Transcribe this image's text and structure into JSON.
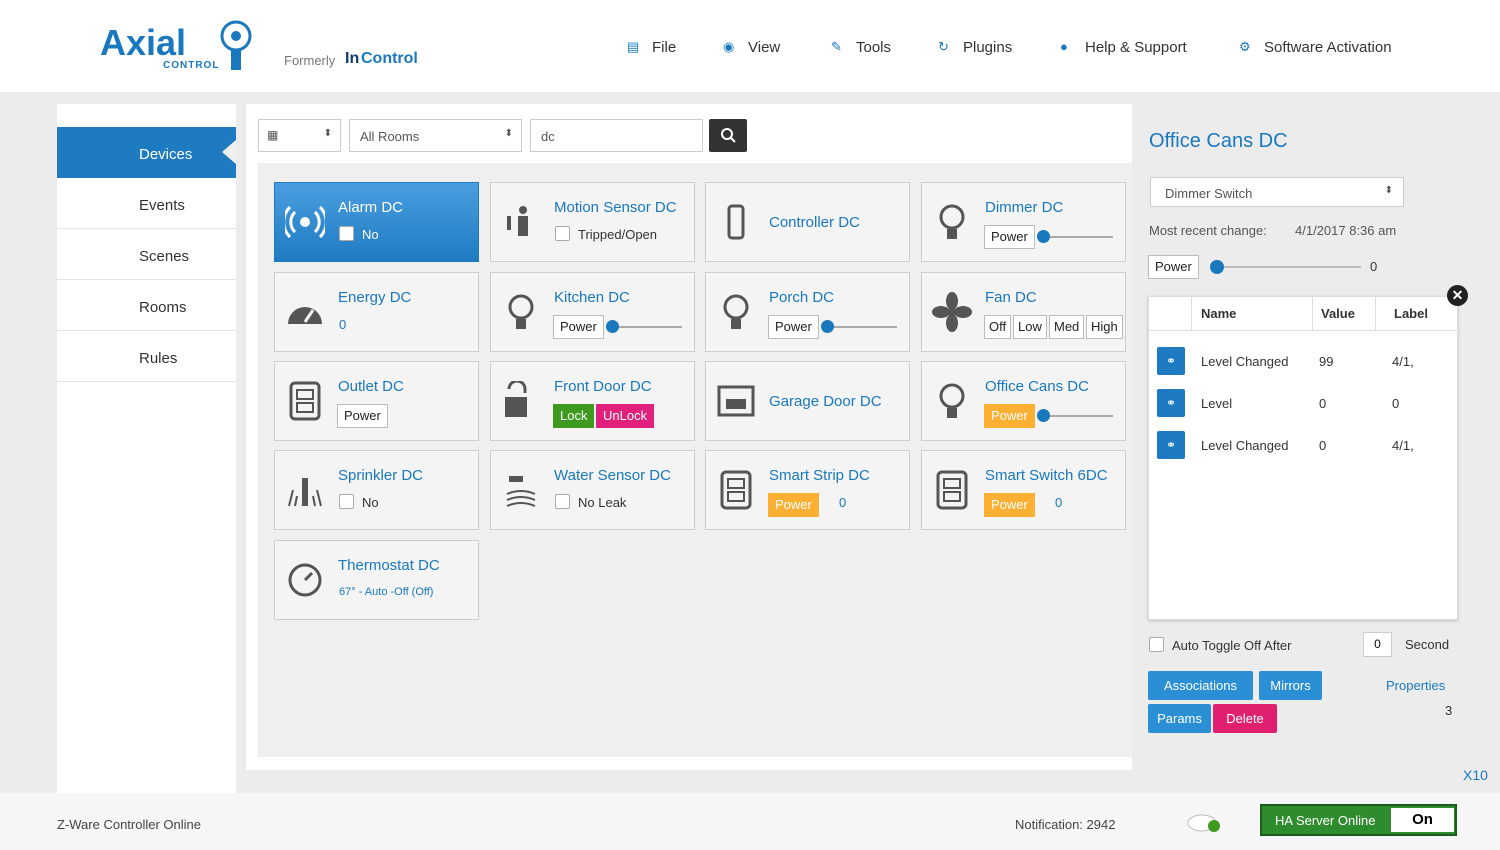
{
  "header": {
    "logo": "Axial",
    "logo_sub": "CONTROL",
    "formerly": "Formerly",
    "brand_in": "In",
    "brand_control": "Control",
    "menu": [
      "File",
      "View",
      "Tools",
      "Plugins",
      "Help & Support",
      "Software Activation"
    ]
  },
  "sidebar": [
    "Devices",
    "Events",
    "Scenes",
    "Rooms",
    "Rules"
  ],
  "filters": {
    "rooms": "All Rooms",
    "search": "dc"
  },
  "devices": [
    {
      "name": "Alarm DC",
      "check": "No"
    },
    {
      "name": "Motion Sensor DC",
      "check": "Tripped/Open"
    },
    {
      "name": "Controller DC"
    },
    {
      "name": "Dimmer DC",
      "buttons": [
        {
          "label": "Power"
        }
      ],
      "slider": true
    },
    {
      "name": "Energy DC",
      "value": 0
    },
    {
      "name": "Kitchen DC",
      "buttons": [
        {
          "label": "Power"
        }
      ],
      "slider": true
    },
    {
      "name": "Porch DC",
      "buttons": [
        {
          "label": "Power"
        }
      ],
      "slider": true
    },
    {
      "name": "Fan DC",
      "buttons": [
        {
          "label": "Off"
        },
        {
          "label": "Low"
        },
        {
          "label": "Med"
        },
        {
          "label": "High"
        }
      ]
    },
    {
      "name": "Outlet DC",
      "buttons": [
        {
          "label": "Power"
        }
      ]
    },
    {
      "name": "Front Door DC",
      "buttons": [
        {
          "label": "Lock",
          "color": "#3d9a1f"
        },
        {
          "label": "UnLock",
          "color": "#e0207a"
        }
      ]
    },
    {
      "name": "Garage Door DC"
    },
    {
      "name": "Office Cans DC",
      "buttons": [
        {
          "label": "Power",
          "color": "#fbb034"
        }
      ],
      "slider": true
    },
    {
      "name": "Sprinkler DC",
      "check": "No"
    },
    {
      "name": "Water Sensor DC",
      "check": "No Leak"
    },
    {
      "name": "Smart Strip DC",
      "buttons": [
        {
          "label": "Power",
          "color": "#fbb034"
        }
      ],
      "value": 0
    },
    {
      "name": "Smart Switch 6DC",
      "buttons": [
        {
          "label": "Power",
          "color": "#fbb034"
        }
      ],
      "value": 0
    },
    {
      "name": "Thermostat DC",
      "status": "67° - Auto -Off (Off)"
    }
  ],
  "panel": {
    "title": "Office Cans DC",
    "type": "Dimmer Switch",
    "recent_label": "Most recent change:",
    "recent_value": "4/1/2017 8:36 am",
    "power": "Power",
    "level": 0,
    "columns": [
      "Name",
      "Value",
      "Label"
    ],
    "rows": [
      [
        "Level Changed",
        99,
        "4/1,"
      ],
      [
        "Level",
        0,
        0
      ],
      [
        "Level Changed",
        0,
        "4/1,"
      ]
    ],
    "auto_toggle": "Auto Toggle Off After",
    "seconds": 0,
    "seconds_label": "Second",
    "buttons": [
      {
        "label": "Associations",
        "color": "#2b8fd6"
      },
      {
        "label": "Mirrors",
        "color": "#2b8fd6"
      },
      {
        "label": "Params",
        "color": "#2b8fd6"
      },
      {
        "label": "Delete",
        "color": "#e0206f"
      }
    ],
    "properties": "Properties",
    "properties_count": 3,
    "x10": "X10"
  },
  "footer": {
    "status": "Z-Ware Controller Online",
    "notification": "Notification: 2942",
    "ha": "HA Server Online",
    "toggle": "On"
  }
}
